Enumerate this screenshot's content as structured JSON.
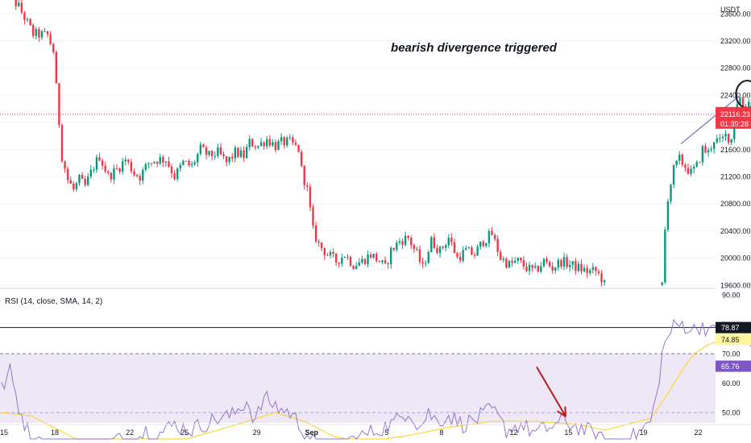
{
  "chart_data": {
    "type": "candlestick",
    "price_pane": {
      "currency": "USDT",
      "y_ticks": [
        19600,
        20000,
        20400,
        20800,
        21200,
        21600,
        22000,
        22400,
        22800,
        23200,
        23600
      ],
      "y_tick_labels": [
        "19600.00",
        "20000.00",
        "20400.00",
        "20800.00",
        "21200.00",
        "21600.00",
        "22000.00",
        "22400.00",
        "22800.00",
        "23200.00",
        "23600.00"
      ],
      "ylim": [
        19550,
        23800
      ],
      "last_price": "22116.23",
      "last_price_value": 22116.23,
      "countdown": "01:39:28",
      "annotation": "bearish divergence triggered",
      "trend_line": {
        "from": {
          "x": 236,
          "y": 21680
        },
        "to": {
          "x": 256,
          "y": 22380
        }
      },
      "circle_marker": {
        "x": 259,
        "y": 22410
      },
      "waypoints": [
        [
          0,
          24000
        ],
        [
          6,
          23700
        ],
        [
          11,
          23300
        ],
        [
          16,
          23280
        ],
        [
          18,
          23050
        ],
        [
          19,
          22500
        ],
        [
          21,
          21500
        ],
        [
          23,
          21150
        ],
        [
          25,
          21000
        ],
        [
          27,
          21150
        ],
        [
          29,
          21050
        ],
        [
          32,
          21350
        ],
        [
          34,
          21500
        ],
        [
          37,
          21200
        ],
        [
          40,
          21300
        ],
        [
          43,
          21450
        ],
        [
          46,
          21250
        ],
        [
          48,
          21200
        ],
        [
          51,
          21400
        ],
        [
          54,
          21450
        ],
        [
          57,
          21450
        ],
        [
          60,
          21200
        ],
        [
          63,
          21400
        ],
        [
          66,
          21350
        ],
        [
          69,
          21600
        ],
        [
          72,
          21500
        ],
        [
          75,
          21550
        ],
        [
          78,
          21400
        ],
        [
          81,
          21550
        ],
        [
          84,
          21500
        ],
        [
          86,
          21700
        ],
        [
          89,
          21650
        ],
        [
          92,
          21750
        ],
        [
          95,
          21650
        ],
        [
          97,
          21700
        ],
        [
          100,
          21700
        ],
        [
          103,
          21600
        ],
        [
          104,
          21300
        ],
        [
          106,
          21000
        ],
        [
          107,
          20700
        ],
        [
          108,
          20400
        ],
        [
          110,
          20200
        ],
        [
          113,
          20050
        ],
        [
          116,
          19950
        ],
        [
          119,
          20050
        ],
        [
          122,
          19900
        ],
        [
          125,
          19950
        ],
        [
          128,
          20050
        ],
        [
          131,
          19950
        ],
        [
          133,
          19850
        ],
        [
          135,
          20100
        ],
        [
          138,
          20250
        ],
        [
          141,
          20300
        ],
        [
          144,
          20050
        ],
        [
          146,
          19850
        ],
        [
          149,
          20250
        ],
        [
          152,
          20100
        ],
        [
          155,
          20300
        ],
        [
          158,
          20000
        ],
        [
          161,
          20100
        ],
        [
          164,
          20050
        ],
        [
          167,
          20250
        ],
        [
          170,
          20350
        ],
        [
          173,
          20000
        ],
        [
          176,
          19900
        ],
        [
          179,
          19950
        ],
        [
          182,
          19850
        ],
        [
          185,
          19800
        ],
        [
          188,
          19950
        ],
        [
          191,
          19850
        ],
        [
          194,
          19950
        ],
        [
          197,
          19900
        ],
        [
          200,
          19850
        ],
        [
          203,
          19800
        ],
        [
          206,
          19800
        ],
        [
          208,
          19700
        ],
        [
          209,
          19600
        ],
        [
          229,
          19600
        ],
        [
          230,
          20400
        ],
        [
          231,
          20900
        ],
        [
          232,
          21100
        ],
        [
          233,
          21300
        ],
        [
          235,
          21450
        ],
        [
          237,
          21350
        ],
        [
          239,
          21250
        ],
        [
          241,
          21350
        ],
        [
          243,
          21600
        ],
        [
          245,
          21550
        ],
        [
          247,
          21750
        ],
        [
          249,
          21700
        ],
        [
          251,
          21800
        ],
        [
          253,
          21750
        ],
        [
          254,
          22100
        ],
        [
          255,
          22300
        ],
        [
          256,
          22350
        ],
        [
          257,
          22250
        ],
        [
          258,
          22200
        ],
        [
          259,
          22300
        ],
        [
          260,
          22200
        ],
        [
          261,
          22150
        ],
        [
          262,
          22116
        ]
      ]
    },
    "rsi_pane": {
      "label": "RSI (14, close, SMA, 14, 2)",
      "y_ticks": [
        50,
        60,
        70,
        80,
        90
      ],
      "y_tick_labels": [
        "50.00",
        "60.00",
        "70.00",
        "80.00",
        "90.00"
      ],
      "ylim": [
        46.5,
        90
      ],
      "band_upper": 70,
      "band_lower": 30,
      "badges": [
        {
          "value": 78.87,
          "label": "78.87",
          "bg": "#131722",
          "fg": "#ffffff"
        },
        {
          "value": 74.85,
          "label": "74.85",
          "bg": "#fff59d",
          "fg": "#131722"
        },
        {
          "value": 65.76,
          "label": "65.76",
          "bg": "#7e57c2",
          "fg": "#ffffff"
        }
      ],
      "reference_line": 78.87,
      "rsi_waypoints": [
        [
          0,
          58
        ],
        [
          3,
          64
        ],
        [
          6,
          52
        ],
        [
          9,
          44
        ],
        [
          12,
          40
        ],
        [
          16,
          38
        ],
        [
          20,
          33
        ],
        [
          25,
          37
        ],
        [
          30,
          33
        ],
        [
          35,
          38
        ],
        [
          40,
          41
        ],
        [
          45,
          39
        ],
        [
          50,
          44
        ],
        [
          55,
          43
        ],
        [
          60,
          46
        ],
        [
          65,
          44
        ],
        [
          70,
          46
        ],
        [
          75,
          48
        ],
        [
          80,
          49
        ],
        [
          85,
          54
        ],
        [
          88,
          47
        ],
        [
          91,
          55
        ],
        [
          94,
          53
        ],
        [
          97,
          51
        ],
        [
          100,
          50
        ],
        [
          104,
          45
        ],
        [
          108,
          40
        ],
        [
          112,
          35
        ],
        [
          116,
          38
        ],
        [
          120,
          40
        ],
        [
          125,
          42
        ],
        [
          130,
          44
        ],
        [
          135,
          46
        ],
        [
          138,
          48
        ],
        [
          141,
          51
        ],
        [
          145,
          45
        ],
        [
          148,
          50
        ],
        [
          151,
          47
        ],
        [
          155,
          49
        ],
        [
          160,
          46
        ],
        [
          165,
          48
        ],
        [
          170,
          51
        ],
        [
          175,
          44
        ],
        [
          180,
          46
        ],
        [
          185,
          43
        ],
        [
          190,
          45
        ],
        [
          195,
          47
        ],
        [
          200,
          45
        ],
        [
          205,
          43
        ],
        [
          209,
          40
        ],
        [
          218,
          41
        ],
        [
          222,
          44
        ],
        [
          225,
          47
        ],
        [
          227,
          55
        ],
        [
          229,
          70
        ],
        [
          231,
          76
        ],
        [
          233,
          79
        ],
        [
          236,
          80
        ],
        [
          240,
          78
        ],
        [
          243,
          80
        ],
        [
          246,
          77
        ],
        [
          249,
          79
        ],
        [
          252,
          78
        ],
        [
          254,
          80
        ],
        [
          256,
          79
        ],
        [
          258,
          76
        ],
        [
          260,
          72
        ],
        [
          262,
          65.76
        ]
      ],
      "ma_waypoints": [
        [
          0,
          50
        ],
        [
          10,
          49
        ],
        [
          20,
          44
        ],
        [
          30,
          39
        ],
        [
          45,
          38
        ],
        [
          60,
          40
        ],
        [
          75,
          44
        ],
        [
          85,
          47
        ],
        [
          95,
          50
        ],
        [
          105,
          47
        ],
        [
          115,
          42
        ],
        [
          125,
          40
        ],
        [
          140,
          42
        ],
        [
          155,
          45
        ],
        [
          170,
          47
        ],
        [
          185,
          47
        ],
        [
          200,
          46
        ],
        [
          209,
          44
        ],
        [
          225,
          48
        ],
        [
          230,
          55
        ],
        [
          235,
          63
        ],
        [
          240,
          70
        ],
        [
          245,
          73
        ],
        [
          250,
          75
        ],
        [
          255,
          75.5
        ],
        [
          260,
          75
        ],
        [
          262,
          74.85
        ]
      ]
    },
    "x_axis": {
      "ticks": [
        {
          "x": 0,
          "label": "15"
        },
        {
          "x": 19,
          "label": "18"
        },
        {
          "x": 45,
          "label": "22"
        },
        {
          "x": 64,
          "label": "25"
        },
        {
          "x": 89,
          "label": "29"
        },
        {
          "x": 108,
          "label": "Sep"
        },
        {
          "x": 134,
          "label": "5"
        },
        {
          "x": 153,
          "label": "8"
        },
        {
          "x": 178,
          "label": "12"
        },
        {
          "x": 197,
          "label": "15"
        },
        {
          "x": 223,
          "label": "19"
        },
        {
          "x": 242,
          "label": "22"
        }
      ],
      "xlim": [
        0,
        248
      ]
    },
    "forecast_arrow": {
      "from": {
        "x": 186,
        "y": 65.5
      },
      "to": {
        "x": 196,
        "y": 48.8
      }
    },
    "colors": {
      "up": "#089981",
      "down": "#f23645",
      "rsi_line": "#9575cd",
      "rsi_ma": "#fdd835",
      "band_fill": "#ede7f6",
      "trend_line": "#7b6fb5",
      "arrow": "#b71c1c",
      "last_price_bg": "#f23645"
    }
  }
}
